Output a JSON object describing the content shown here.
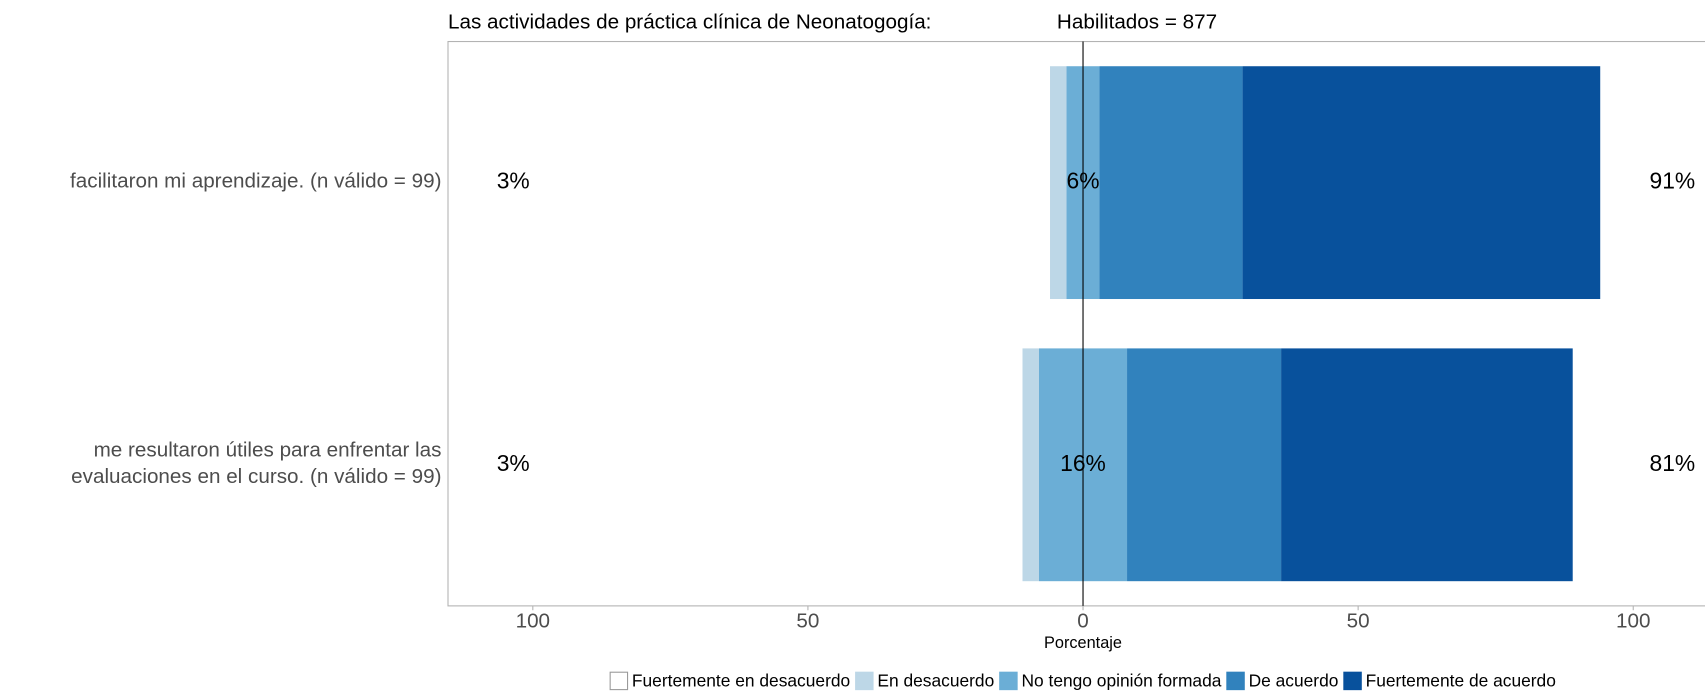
{
  "chart_data": {
    "type": "diverging_bar",
    "title": "Las actividades de práctica clínica de Neonatogogía:",
    "subtitle": "Habilitados = 877",
    "xlabel": "Porcentaje",
    "categories": [
      "facilitaron mi aprendizaje. (n válido = 99)",
      "me resultaron útiles para enfrentar las\nevaluaciones en el curso. (n válido = 99)"
    ],
    "series": [
      {
        "name": "Fuertemente en desacuerdo",
        "color": "#ffffff",
        "side": "disagree",
        "values": [
          0,
          0
        ]
      },
      {
        "name": "En desacuerdo",
        "color": "#bdd7e7",
        "side": "disagree",
        "values": [
          3,
          3
        ]
      },
      {
        "name": "No tengo opinión formada",
        "color": "#6baed6",
        "side": "neutral",
        "values": [
          6,
          16
        ],
        "value_labels": [
          "6%",
          "16%"
        ]
      },
      {
        "name": "De acuerdo",
        "color": "#3182bd",
        "side": "agree",
        "values": [
          26,
          28
        ]
      },
      {
        "name": "Fuertemente de acuerdo",
        "color": "#08519c",
        "side": "agree",
        "values": [
          65,
          53
        ]
      }
    ],
    "totals": {
      "disagree": {
        "values": [
          3,
          3
        ],
        "value_labels": [
          "3%",
          "3%"
        ]
      },
      "agree": {
        "values": [
          91,
          81
        ],
        "value_labels": [
          "91%",
          "81%"
        ]
      }
    },
    "xlim": [
      -115,
      115
    ],
    "xticks": [
      {
        "value": -100,
        "label": "100"
      },
      {
        "value": -50,
        "label": "50"
      },
      0,
      50,
      100
    ],
    "legend": "bottom"
  }
}
